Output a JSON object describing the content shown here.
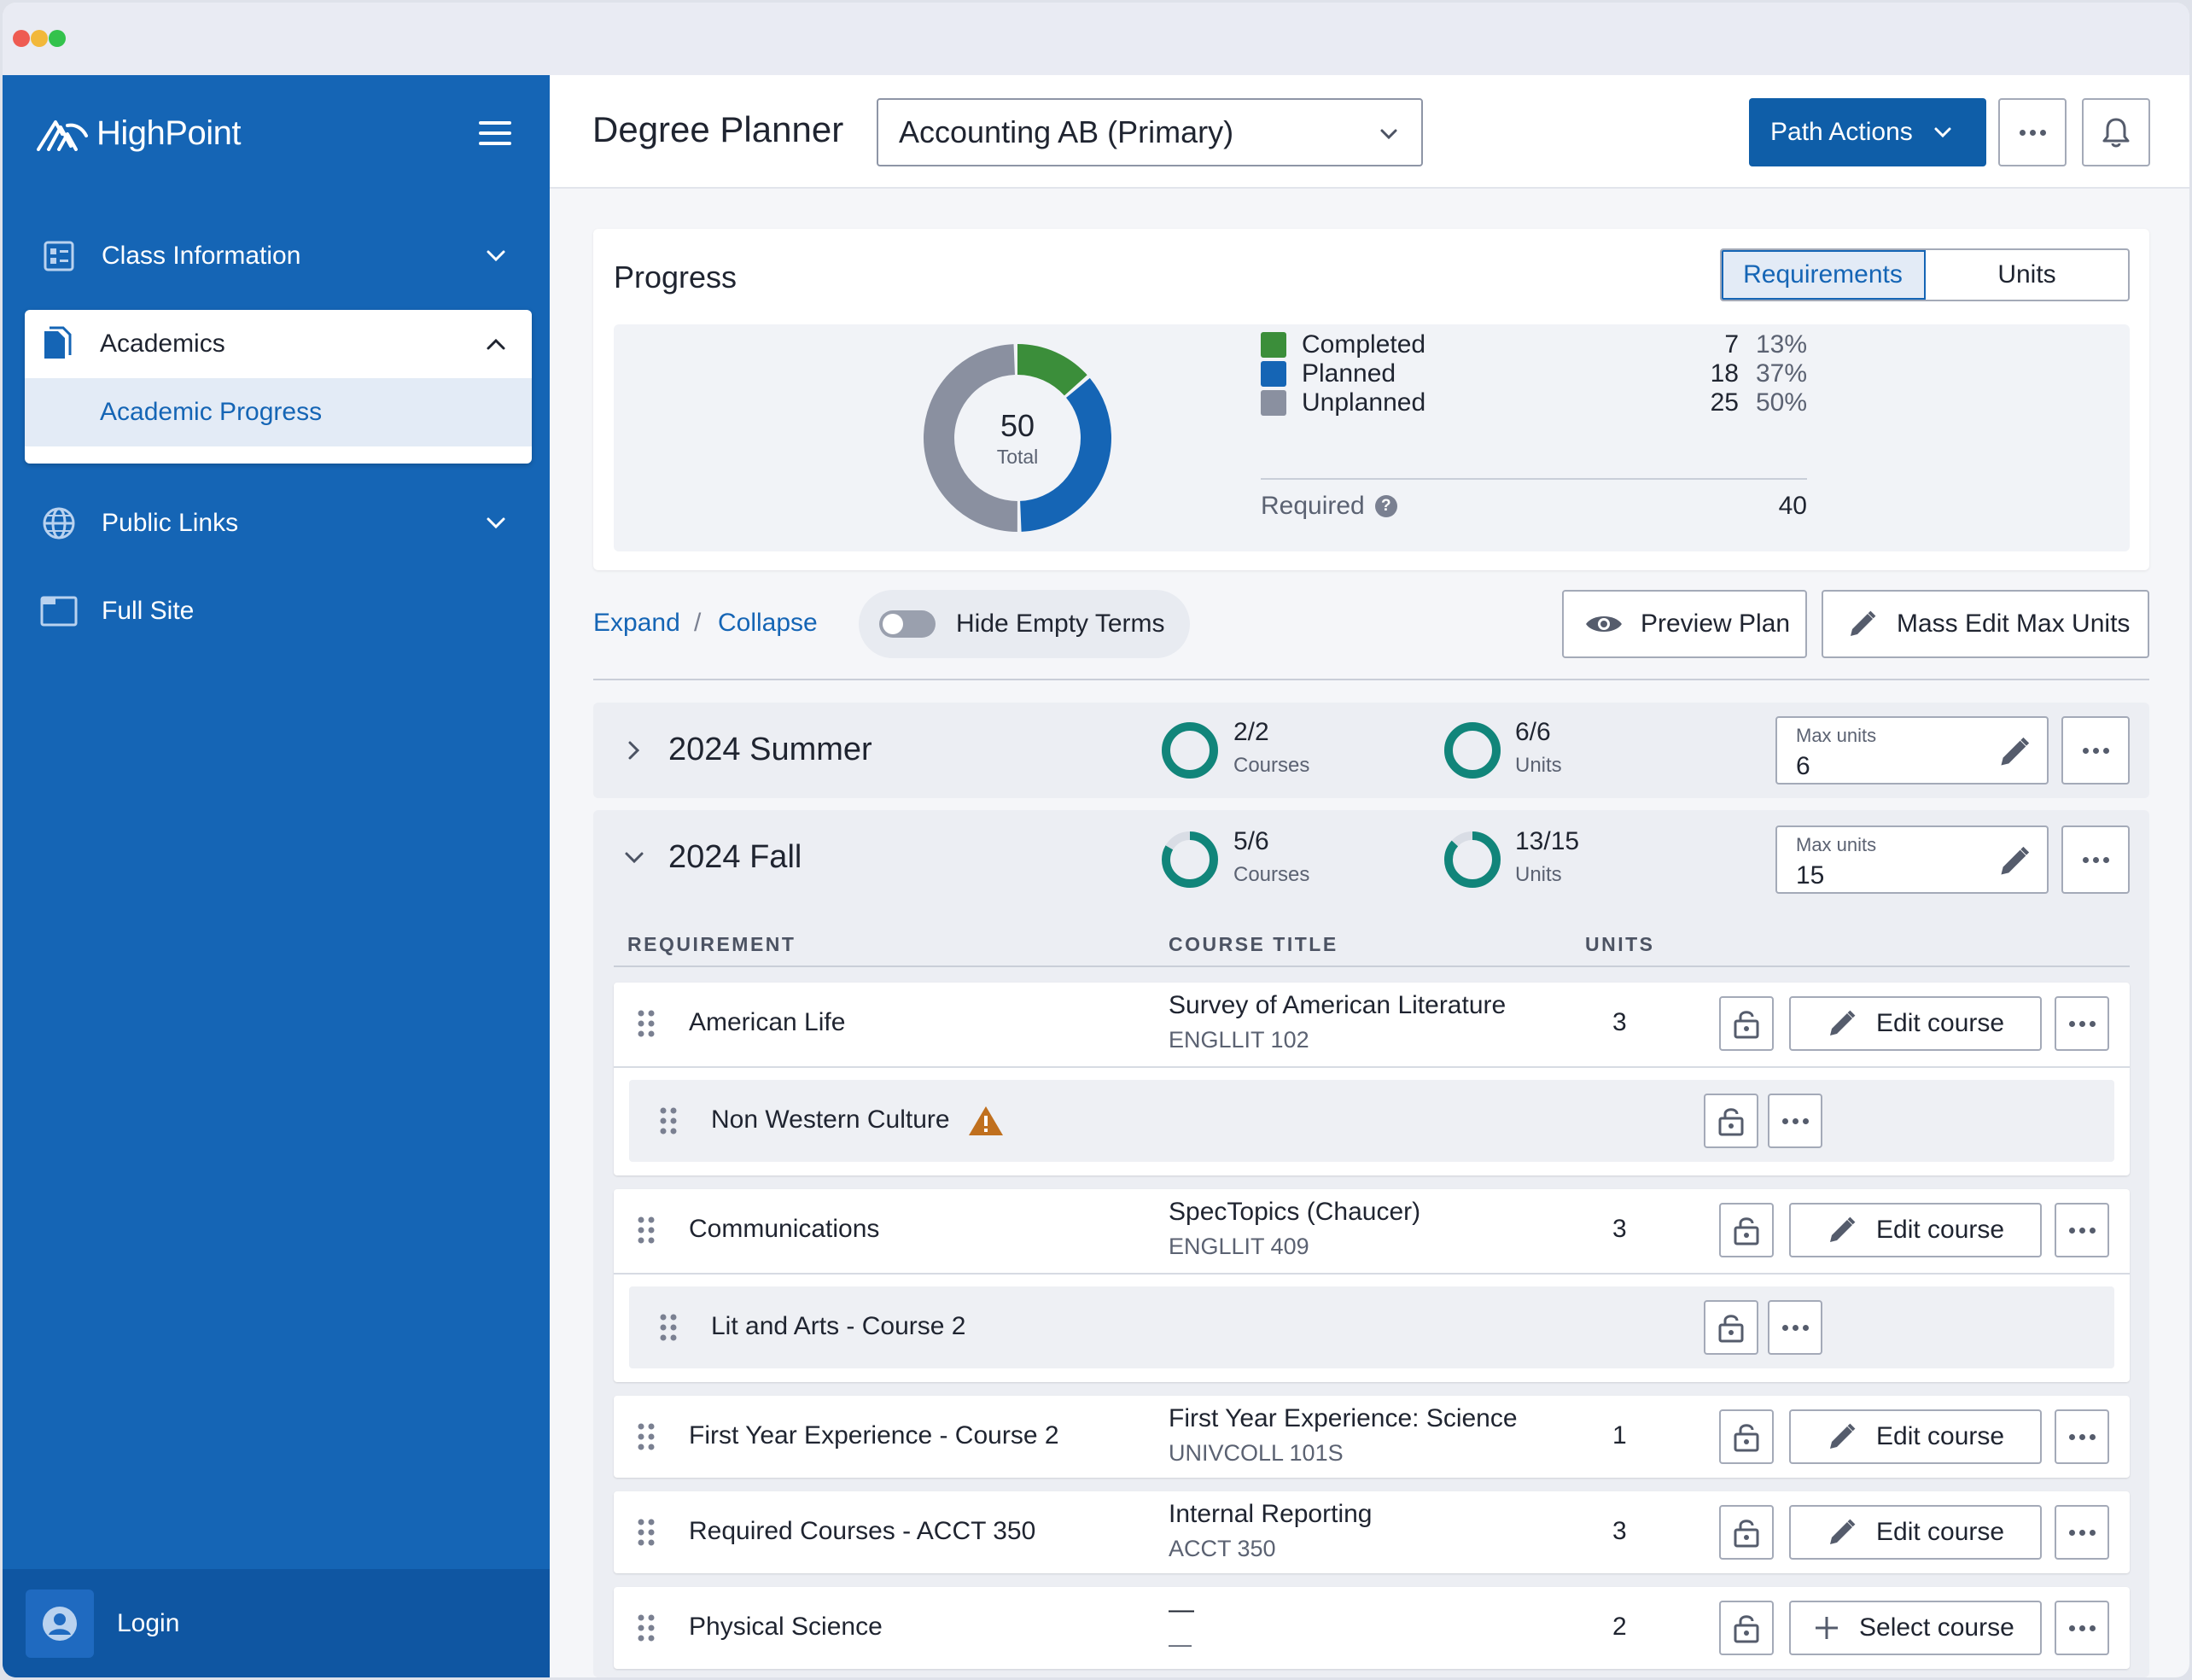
{
  "sidebar": {
    "brand": "HighPoint",
    "nav": {
      "class_info": "Class Information",
      "academics": "Academics",
      "academic_progress": "Academic Progress",
      "public_links": "Public Links",
      "full_site": "Full Site"
    },
    "login": "Login"
  },
  "header": {
    "title": "Degree Planner",
    "plan_select_value": "Accounting AB (Primary)",
    "path_actions": "Path Actions"
  },
  "progress": {
    "title": "Progress",
    "toggle": {
      "requirements": "Requirements",
      "units": "Units",
      "active": "Requirements"
    },
    "total_value": "50",
    "total_label": "Total",
    "legend": [
      {
        "name": "Completed",
        "count": "7",
        "pct": "13%",
        "color": "#3b8e3a"
      },
      {
        "name": "Planned",
        "count": "18",
        "pct": "37%",
        "color": "#1565b5"
      },
      {
        "name": "Unplanned",
        "count": "25",
        "pct": "50%",
        "color": "#8a90a0"
      }
    ],
    "required_label": "Required",
    "required_value": "40"
  },
  "toolbar": {
    "expand": "Expand",
    "separator": "/",
    "collapse": "Collapse",
    "hide_empty_terms": "Hide Empty Terms",
    "preview_plan": "Preview Plan",
    "mass_edit": "Mass Edit Max Units"
  },
  "terms": [
    {
      "name": "2024 Summer",
      "courses": "2/2",
      "courses_label": "Courses",
      "courses_frac": 1.0,
      "units": "6/6",
      "units_label": "Units",
      "units_frac": 1.0,
      "max_units_label": "Max units",
      "max_units": "6",
      "expanded": false
    },
    {
      "name": "2024 Fall",
      "courses": "5/6",
      "courses_label": "Courses",
      "courses_frac": 0.833,
      "units": "13/15",
      "units_label": "Units",
      "units_frac": 0.867,
      "max_units_label": "Max units",
      "max_units": "15",
      "expanded": true
    }
  ],
  "table": {
    "headers": {
      "requirement": "REQUIREMENT",
      "course_title": "COURSE TITLE",
      "units": "UNITS"
    },
    "rows": [
      {
        "requirement": "American Life",
        "course_title": "Survey of American Literature",
        "course_code": "ENGLLIT 102",
        "units": "3",
        "action": "Edit course"
      },
      {
        "requirement": "Non Western Culture",
        "warning": true
      },
      {
        "requirement": "Communications",
        "course_title": "SpecTopics (Chaucer)",
        "course_code": "ENGLLIT 409",
        "units": "3",
        "action": "Edit course"
      },
      {
        "requirement": "Lit and Arts - Course 2"
      },
      {
        "requirement": "First Year Experience - Course 2",
        "course_title": "First Year Experience: Science",
        "course_code": "UNIVCOLL 101S",
        "units": "1",
        "action": "Edit course"
      },
      {
        "requirement": "Required Courses - ACCT 350",
        "course_title": "Internal Reporting",
        "course_code": "ACCT 350",
        "units": "3",
        "action": "Edit course"
      },
      {
        "requirement": "Physical Science",
        "course_title": "—",
        "course_code": "—",
        "units": "2",
        "action": "Select course"
      }
    ]
  },
  "colors": {
    "sidebar": "#1565b5",
    "primary": "#0f5ea8",
    "ring": "#11857a",
    "warning": "#c0701e"
  }
}
